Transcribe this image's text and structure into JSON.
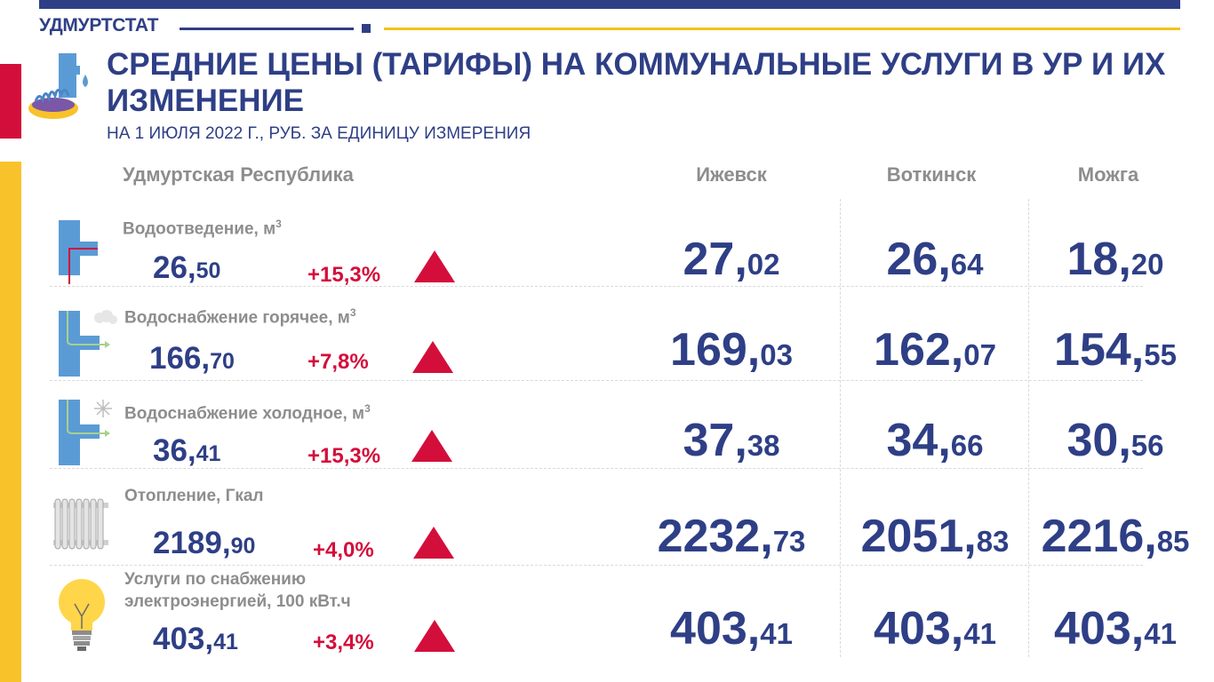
{
  "header": {
    "brand": "УДМУРТСТАТ",
    "title": "СРЕДНИЕ ЦЕНЫ (ТАРИФЫ) НА КОММУНАЛЬНЫЕ УСЛУГИ В УР И ИХ ИЗМЕНЕНИЕ",
    "subtitle": "НА 1 ИЮЛЯ 2022 Г., РУБ. ЗА ЕДИНИЦУ ИЗМЕРЕНИЯ"
  },
  "columns": {
    "region": "Удмуртская Республика",
    "city1": "Ижевск",
    "city2": "Воткинск",
    "city3": "Можга"
  },
  "colors": {
    "navy": "#2e3f86",
    "red": "#d40e3b",
    "yellow": "#f8c22a",
    "grey": "#8d8d8d"
  },
  "rows": [
    {
      "label": "Водоотведение, м",
      "unit_sup": "3",
      "icon": "drain-pipe-icon",
      "ur_int": "26,",
      "ur_frac": "50",
      "change": "+15,3%",
      "izh_int": "27,",
      "izh_frac": "02",
      "vot_int": "26,",
      "vot_frac": "64",
      "moz_int": "18,",
      "moz_frac": "20"
    },
    {
      "label": "Водоснабжение горячее, м",
      "unit_sup": "3",
      "icon": "hot-water-pipe-icon",
      "ur_int": "166,",
      "ur_frac": "70",
      "change": "+7,8%",
      "izh_int": "169,",
      "izh_frac": "03",
      "vot_int": "162,",
      "vot_frac": "07",
      "moz_int": "154,",
      "moz_frac": "55"
    },
    {
      "label": "Водоснабжение холодное, м",
      "unit_sup": "3",
      "icon": "cold-water-pipe-icon",
      "ur_int": "36,",
      "ur_frac": "41",
      "change": "+15,3%",
      "izh_int": "37,",
      "izh_frac": "38",
      "vot_int": "34,",
      "vot_frac": "66",
      "moz_int": "30,",
      "moz_frac": "56"
    },
    {
      "label": "Отопление, Гкал",
      "unit_sup": "",
      "icon": "radiator-icon",
      "ur_int": "2189,",
      "ur_frac": "90",
      "change": "+4,0%",
      "izh_int": "2232,",
      "izh_frac": "73",
      "vot_int": "2051,",
      "vot_frac": "83",
      "moz_int": "2216,",
      "moz_frac": "85"
    },
    {
      "label_line1": "Услуги по снабжению",
      "label_line2": "электроэнергией, 100 кВт.ч",
      "icon": "light-bulb-icon",
      "ur_int": "403,",
      "ur_frac": "41",
      "change": "+3,4%",
      "izh_int": "403,",
      "izh_frac": "41",
      "vot_int": "403,",
      "vot_frac": "41",
      "moz_int": "403,",
      "moz_frac": "41"
    }
  ]
}
